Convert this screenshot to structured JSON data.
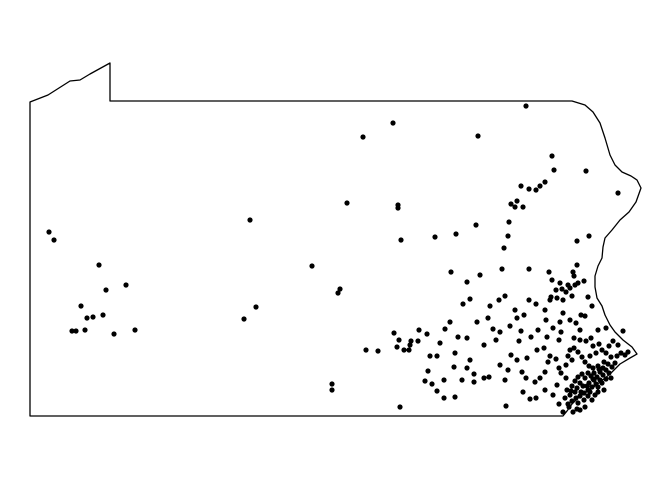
{
  "map": {
    "region": "Pennsylvania",
    "outline_color": "#000000",
    "point_color": "#000000",
    "background": "#ffffff",
    "point_count_estimate": 260
  }
}
